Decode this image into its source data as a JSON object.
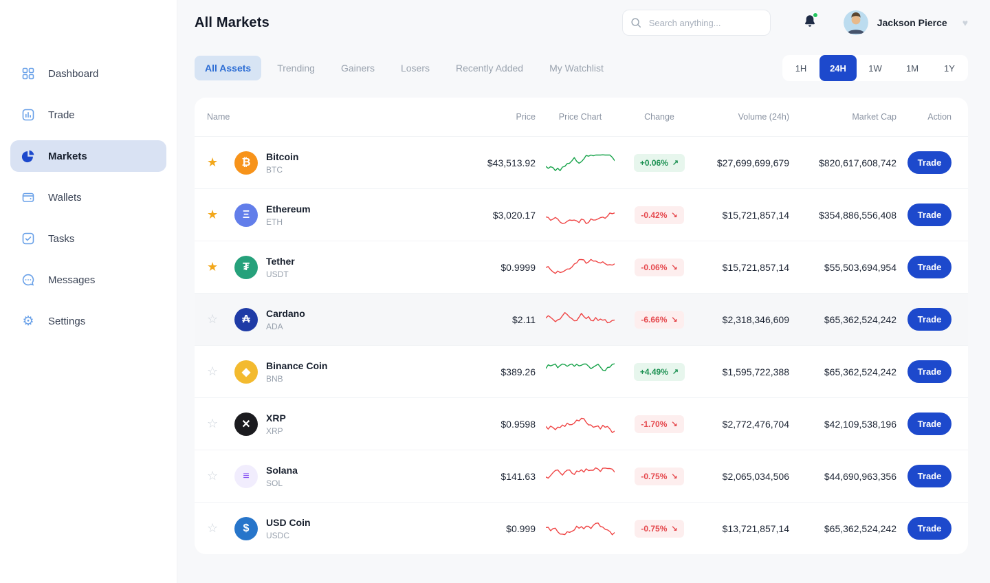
{
  "colors": {
    "accent": "#1d49cc",
    "positive": "#17a34a",
    "negative": "#ef4444"
  },
  "sidebar": {
    "items": [
      {
        "label": "Dashboard",
        "icon": "grid-icon",
        "active": false
      },
      {
        "label": "Trade",
        "icon": "bar-chart-icon",
        "active": false
      },
      {
        "label": "Markets",
        "icon": "pie-chart-icon",
        "active": true
      },
      {
        "label": "Wallets",
        "icon": "wallet-icon",
        "active": false
      },
      {
        "label": "Tasks",
        "icon": "checklist-icon",
        "active": false
      },
      {
        "label": "Messages",
        "icon": "chat-bubble-icon",
        "active": false
      },
      {
        "label": "Settings",
        "icon": "gear-icon",
        "active": false
      }
    ]
  },
  "header": {
    "title": "All Markets",
    "search_placeholder": "Search anything...",
    "user_name": "Jackson Pierce"
  },
  "filters": {
    "tabs": [
      {
        "label": "All Assets",
        "active": true
      },
      {
        "label": "Trending",
        "active": false
      },
      {
        "label": "Gainers",
        "active": false
      },
      {
        "label": "Losers",
        "active": false
      },
      {
        "label": "Recently Added",
        "active": false
      },
      {
        "label": "My Watchlist",
        "active": false
      }
    ],
    "timeframes": [
      {
        "label": "1H",
        "active": false
      },
      {
        "label": "24H",
        "active": true
      },
      {
        "label": "1W",
        "active": false
      },
      {
        "label": "1M",
        "active": false
      },
      {
        "label": "1Y",
        "active": false
      }
    ]
  },
  "table": {
    "columns": [
      "Name",
      "Price",
      "Price Chart",
      "Change",
      "Volume (24h)",
      "Market Cap",
      "Action"
    ],
    "trade_label": "Trade",
    "rows": [
      {
        "name": "Bitcoin",
        "symbol": "BTC",
        "price": "$43,513.92",
        "change": "+0.06%",
        "direction": "up",
        "volume": "$27,699,699,679",
        "market_cap": "$820,617,608,742",
        "starred": true,
        "highlight": false,
        "icon_glyph": "₿",
        "icon_bg": "#f7931a",
        "icon_color": "#ffffff"
      },
      {
        "name": "Ethereum",
        "symbol": "ETH",
        "price": "$3,020.17",
        "change": "-0.42%",
        "direction": "down",
        "volume": "$15,721,857,14",
        "market_cap": "$354,886,556,408",
        "starred": true,
        "highlight": false,
        "icon_glyph": "Ξ",
        "icon_bg": "#627eea",
        "icon_color": "#ffffff"
      },
      {
        "name": "Tether",
        "symbol": "USDT",
        "price": "$0.9999",
        "change": "-0.06%",
        "direction": "down",
        "volume": "$15,721,857,14",
        "market_cap": "$55,503,694,954",
        "starred": true,
        "highlight": false,
        "icon_glyph": "₮",
        "icon_bg": "#26a17b",
        "icon_color": "#ffffff"
      },
      {
        "name": "Cardano",
        "symbol": "ADA",
        "price": "$2.11",
        "change": "-6.66%",
        "direction": "down",
        "volume": "$2,318,346,609",
        "market_cap": "$65,362,524,242",
        "starred": false,
        "highlight": true,
        "icon_glyph": "₳",
        "icon_bg": "#1f3ba6",
        "icon_color": "#ffffff"
      },
      {
        "name": "Binance Coin",
        "symbol": "BNB",
        "price": "$389.26",
        "change": "+4.49%",
        "direction": "up",
        "volume": "$1,595,722,388",
        "market_cap": "$65,362,524,242",
        "starred": false,
        "highlight": false,
        "icon_glyph": "◆",
        "icon_bg": "#f3ba2f",
        "icon_color": "#ffffff"
      },
      {
        "name": "XRP",
        "symbol": "XRP",
        "price": "$0.9598",
        "change": "-1.70%",
        "direction": "down",
        "volume": "$2,772,476,704",
        "market_cap": "$42,109,538,196",
        "starred": false,
        "highlight": false,
        "icon_glyph": "✕",
        "icon_bg": "#1b1b1f",
        "icon_color": "#ffffff"
      },
      {
        "name": "Solana",
        "symbol": "SOL",
        "price": "$141.63",
        "change": "-0.75%",
        "direction": "down",
        "volume": "$2,065,034,506",
        "market_cap": "$44,690,963,356",
        "starred": false,
        "highlight": false,
        "icon_glyph": "≡",
        "icon_bg": "#f1edfd",
        "icon_color": "#8752f3"
      },
      {
        "name": "USD Coin",
        "symbol": "USDC",
        "price": "$0.999",
        "change": "-0.75%",
        "direction": "down",
        "volume": "$13,721,857,14",
        "market_cap": "$65,362,524,242",
        "starred": false,
        "highlight": false,
        "icon_glyph": "$",
        "icon_bg": "#2775ca",
        "icon_color": "#ffffff"
      }
    ]
  }
}
